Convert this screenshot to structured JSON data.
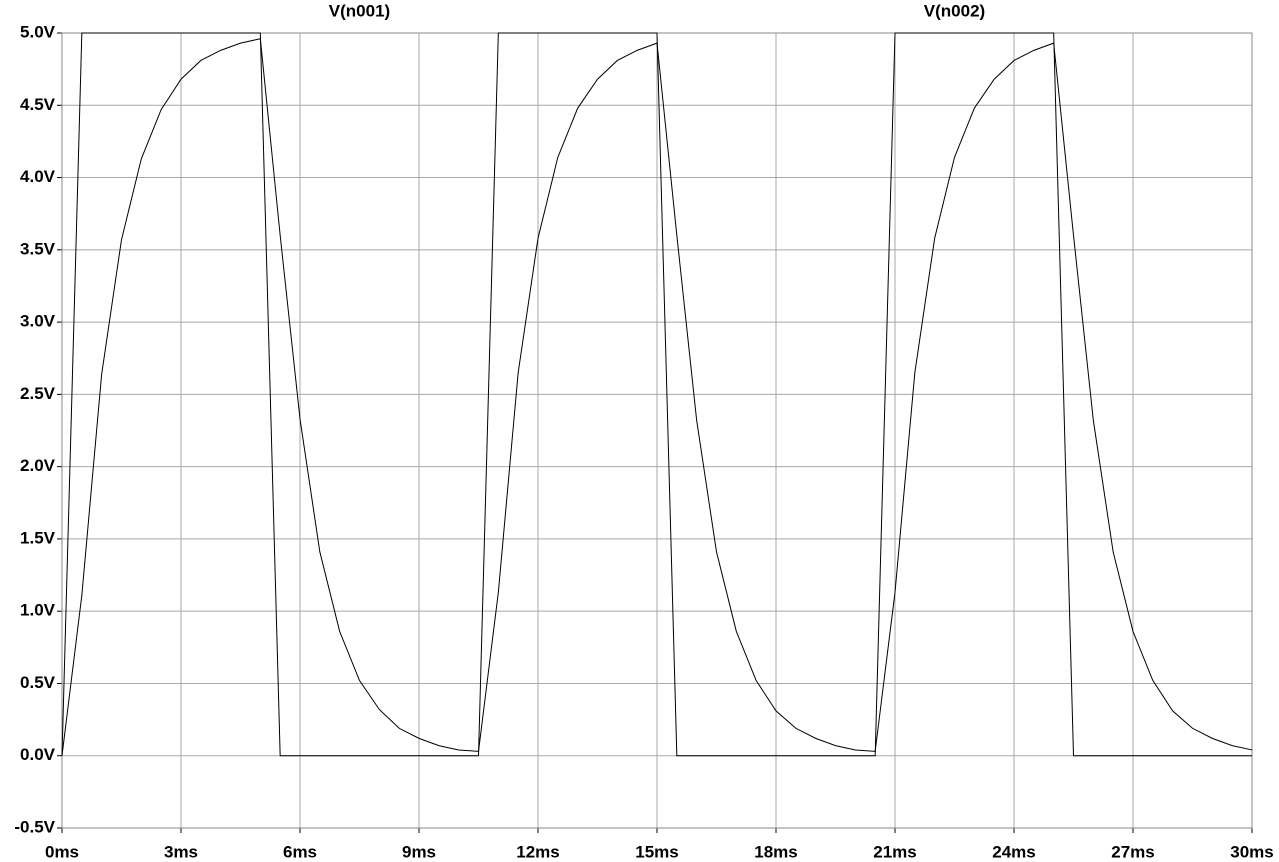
{
  "chart_data": {
    "type": "line",
    "x": [
      0,
      0.5,
      1,
      1.5,
      2,
      2.5,
      3,
      3.5,
      4,
      4.5,
      5,
      5.5,
      6,
      6.5,
      7,
      7.5,
      8,
      8.5,
      9,
      9.5,
      10,
      10.5,
      11,
      11.5,
      12,
      12.5,
      13,
      13.5,
      14,
      14.5,
      15,
      15.5,
      16,
      16.5,
      17,
      17.5,
      18,
      18.5,
      19,
      19.5,
      20,
      20.5,
      21,
      21.5,
      22,
      22.5,
      23,
      23.5,
      24,
      24.5,
      25,
      25.5,
      26,
      26.5,
      27,
      27.5,
      28,
      28.5,
      29,
      29.5,
      30
    ],
    "series": [
      {
        "name": "V(n001)",
        "color": "#000000",
        "values": [
          0,
          5,
          5,
          5,
          5,
          5,
          5,
          5,
          5,
          5,
          5,
          0,
          0,
          0,
          0,
          0,
          0,
          0,
          0,
          0,
          0,
          0,
          5,
          5,
          5,
          5,
          5,
          5,
          5,
          5,
          5,
          0,
          0,
          0,
          0,
          0,
          0,
          0,
          0,
          0,
          0,
          0,
          5,
          5,
          5,
          5,
          5,
          5,
          5,
          5,
          5,
          0,
          0,
          0,
          0,
          0,
          0,
          0,
          0,
          0,
          0
        ]
      },
      {
        "name": "V(n002)",
        "color": "#000000",
        "values": [
          0,
          1.11,
          2.64,
          3.57,
          4.13,
          4.47,
          4.68,
          4.81,
          4.88,
          4.93,
          4.96,
          3.6,
          2.33,
          1.41,
          0.86,
          0.52,
          0.32,
          0.19,
          0.12,
          0.07,
          0.04,
          0.03,
          1.13,
          2.65,
          3.58,
          4.14,
          4.48,
          4.68,
          4.81,
          4.88,
          4.93,
          3.6,
          2.32,
          1.41,
          0.86,
          0.52,
          0.31,
          0.19,
          0.12,
          0.07,
          0.04,
          0.03,
          1.13,
          2.65,
          3.58,
          4.14,
          4.48,
          4.68,
          4.81,
          4.88,
          4.93,
          3.6,
          2.32,
          1.41,
          0.86,
          0.52,
          0.31,
          0.19,
          0.12,
          0.07,
          0.04
        ]
      }
    ],
    "xlim": [
      0,
      30
    ],
    "xticks": [
      {
        "value": 0,
        "label": "0ms"
      },
      {
        "value": 3,
        "label": "3ms"
      },
      {
        "value": 6,
        "label": "6ms"
      },
      {
        "value": 9,
        "label": "9ms"
      },
      {
        "value": 12,
        "label": "12ms"
      },
      {
        "value": 15,
        "label": "15ms"
      },
      {
        "value": 18,
        "label": "18ms"
      },
      {
        "value": 21,
        "label": "21ms"
      },
      {
        "value": 24,
        "label": "24ms"
      },
      {
        "value": 27,
        "label": "27ms"
      },
      {
        "value": 30,
        "label": "30ms"
      }
    ],
    "ylim": [
      -0.5,
      5
    ],
    "yticks": [
      {
        "value": -0.5,
        "label": "-0.5V"
      },
      {
        "value": 0,
        "label": "0.0V"
      },
      {
        "value": 0.5,
        "label": "0.5V"
      },
      {
        "value": 1,
        "label": "1.0V"
      },
      {
        "value": 1.5,
        "label": "1.5V"
      },
      {
        "value": 2,
        "label": "2.0V"
      },
      {
        "value": 2.5,
        "label": "2.5V"
      },
      {
        "value": 3,
        "label": "3.0V"
      },
      {
        "value": 3.5,
        "label": "3.5V"
      },
      {
        "value": 4,
        "label": "4.0V"
      },
      {
        "value": 4.5,
        "label": "4.5V"
      },
      {
        "value": 5,
        "label": "5.0V"
      }
    ],
    "grid": true
  }
}
